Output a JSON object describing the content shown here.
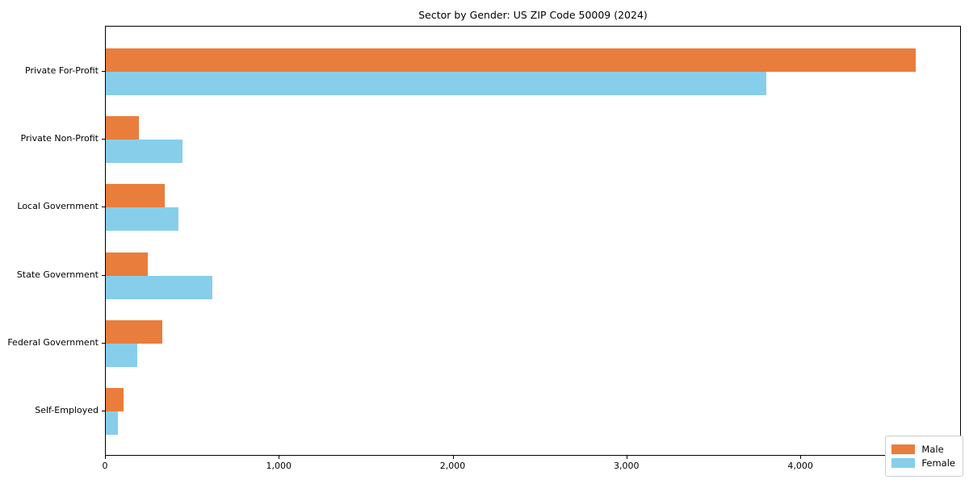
{
  "chart_data": {
    "type": "bar",
    "orientation": "horizontal",
    "title": "Sector by Gender: US ZIP Code 50009 (2024)",
    "categories": [
      "Private For-Profit",
      "Private Non-Profit",
      "Local Government",
      "State Government",
      "Federal Government",
      "Self-Employed"
    ],
    "series": [
      {
        "name": "Male",
        "color": "#e97d3c",
        "values": [
          4660,
          190,
          340,
          240,
          325,
          100
        ]
      },
      {
        "name": "Female",
        "color": "#87ceeb",
        "values": [
          3800,
          440,
          420,
          615,
          180,
          70
        ]
      }
    ],
    "xlabel": "",
    "ylabel": "",
    "xlim": [
      0,
      4924
    ],
    "xticks": [
      0,
      1000,
      2000,
      3000,
      4000
    ],
    "xticklabels": [
      "0",
      "1,000",
      "2,000",
      "3,000",
      "4,000"
    ],
    "grid": false,
    "legend_position": "lower right",
    "legend_title": ""
  },
  "colors": {
    "male": "#e97d3c",
    "female": "#87ceeb",
    "axis": "#000000",
    "legend_border": "#cccccc",
    "background": "#ffffff"
  }
}
